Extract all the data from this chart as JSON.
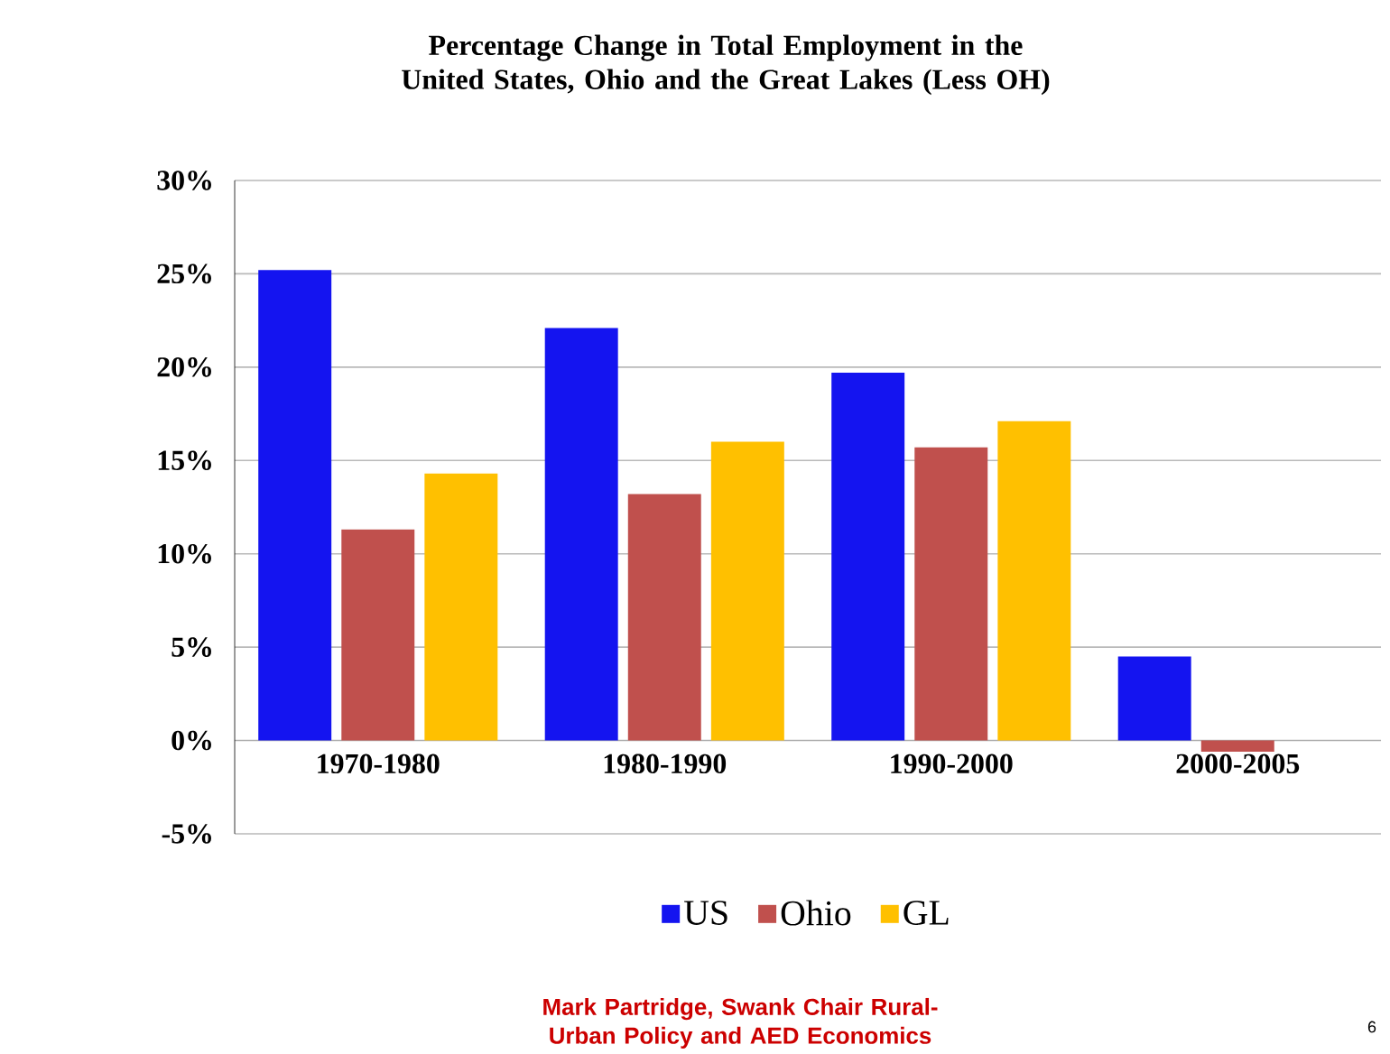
{
  "chart_data": {
    "type": "bar",
    "title": "Percentage Change in Total Employment in the United States, Ohio and the Great Lakes (Less OH)",
    "categories": [
      "1970-1980",
      "1980-1990",
      "1990-2000",
      "2000-2005"
    ],
    "series": [
      {
        "name": "US",
        "color": "#1414f0",
        "values": [
          25.2,
          22.1,
          19.7,
          4.5
        ]
      },
      {
        "name": "Ohio",
        "color": "#c0504d",
        "values": [
          11.3,
          13.2,
          15.7,
          -0.6
        ]
      },
      {
        "name": "GL",
        "color": "#ffc000",
        "values": [
          14.3,
          16.0,
          17.1,
          null
        ]
      }
    ],
    "ylim": [
      -5,
      30
    ],
    "yticks": [
      {
        "value": -5,
        "label": "-5%"
      },
      {
        "value": 0,
        "label": "0%"
      },
      {
        "value": 5,
        "label": "5%"
      },
      {
        "value": 10,
        "label": "10%"
      },
      {
        "value": 15,
        "label": "15%"
      },
      {
        "value": 20,
        "label": "20%"
      },
      {
        "value": 25,
        "label": "25%"
      },
      {
        "value": 30,
        "label": "30%"
      }
    ],
    "grid": "y",
    "legend": "bottom",
    "annotations": [
      "Mark Partridge, Swank Chair Rural-Urban Policy and AED Economics",
      "6"
    ]
  }
}
